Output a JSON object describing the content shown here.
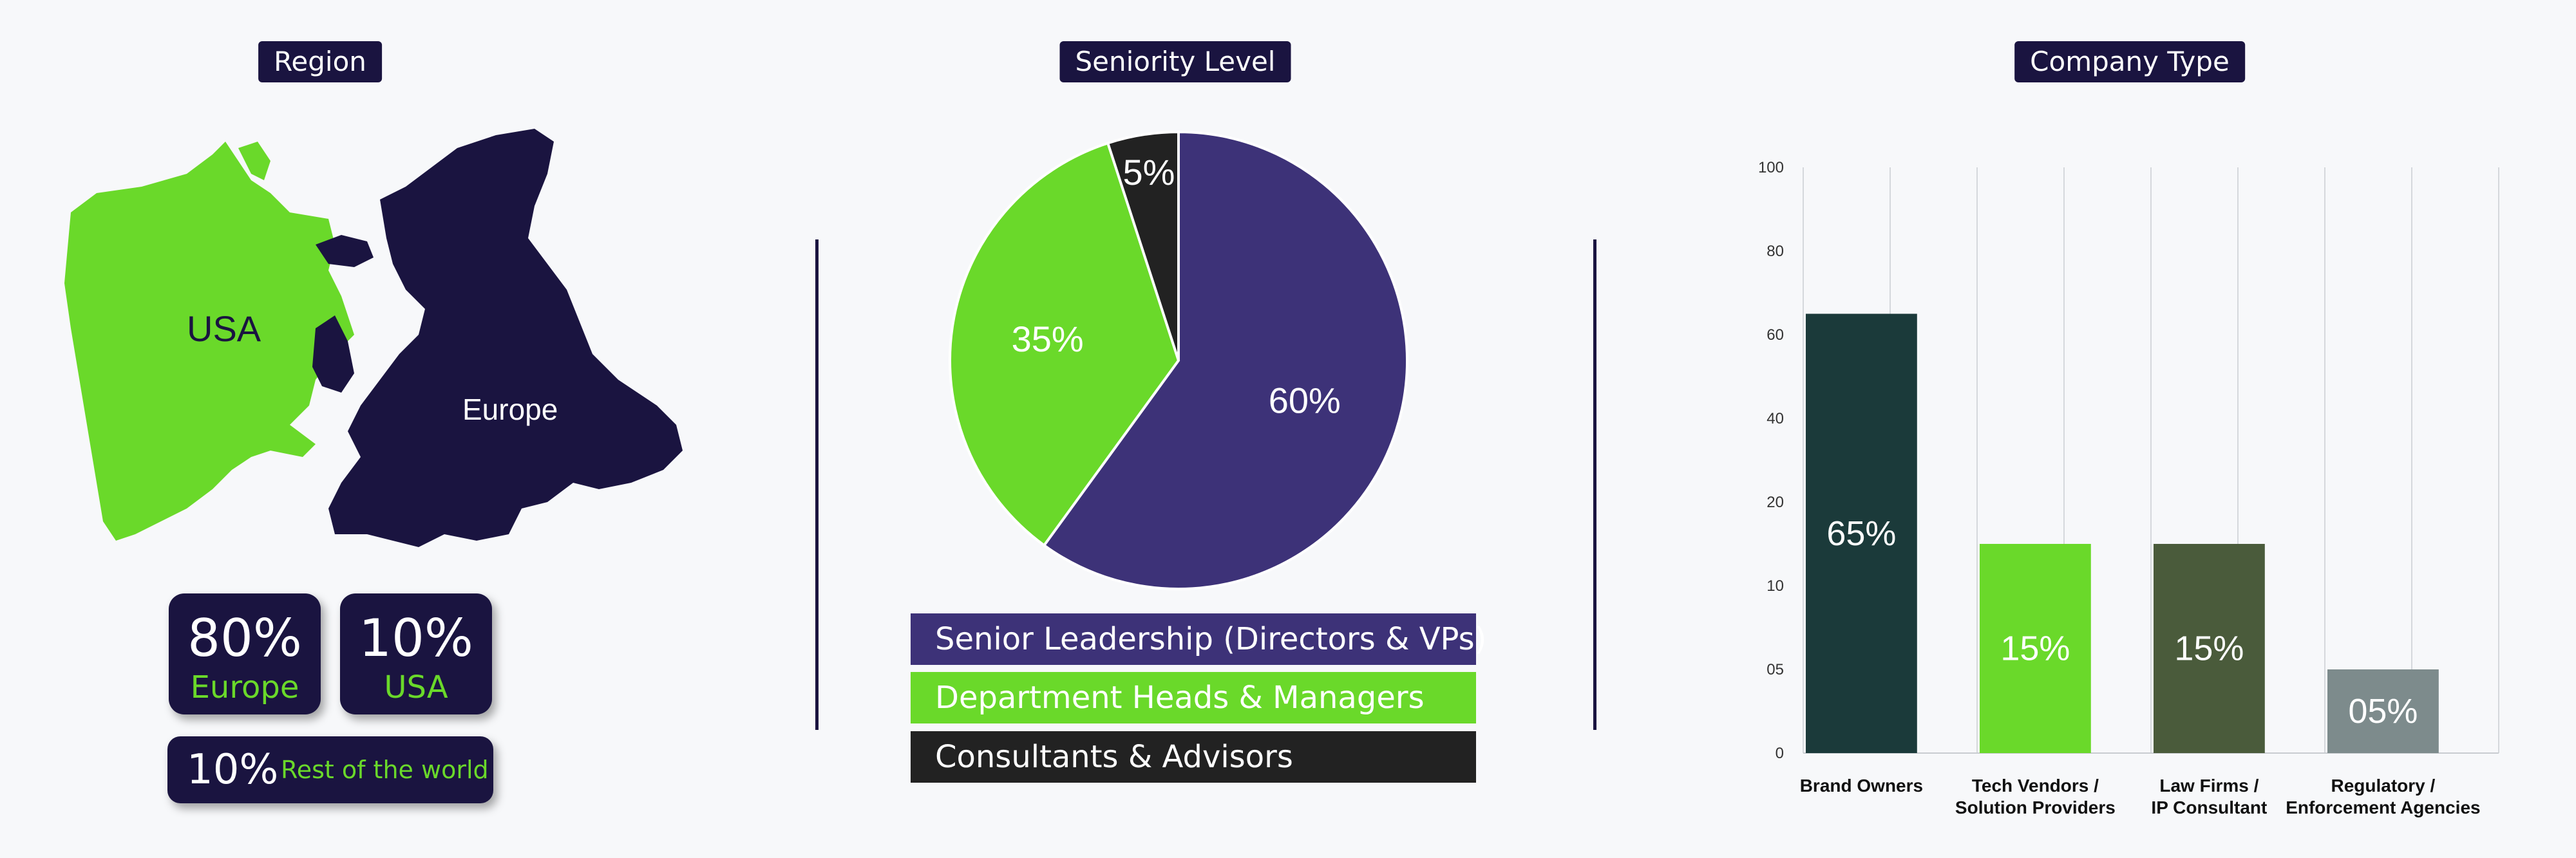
{
  "region": {
    "title": "Region",
    "map_labels": {
      "usa": "USA",
      "europe": "Europe"
    },
    "stats": [
      {
        "value": "80%",
        "label": "Europe"
      },
      {
        "value": "10%",
        "label": "USA"
      },
      {
        "value": "10%",
        "label": "Rest of the world"
      }
    ]
  },
  "seniority": {
    "title": "Seniority Level",
    "legend": [
      "Senior Leadership (Directors & VPs)",
      "Department Heads & Managers",
      "Consultants & Advisors"
    ]
  },
  "company": {
    "title": "Company Type"
  },
  "colors": {
    "navy": "#1a1440",
    "green": "#6ad92a",
    "purple": "#3d3278",
    "black": "#222222",
    "dark_teal": "#1b3a3a",
    "olive": "#4a5b3b",
    "slate": "#7d8b8c"
  },
  "chart_data": [
    {
      "type": "pie",
      "title": "Seniority Level",
      "categories": [
        "Senior Leadership (Directors & VPs)",
        "Department Heads & Managers",
        "Consultants & Advisors"
      ],
      "values": [
        60,
        35,
        5
      ],
      "value_labels": [
        "60%",
        "35%",
        "5%"
      ],
      "colors": [
        "#3d3278",
        "#6ad92a",
        "#222222"
      ]
    },
    {
      "type": "bar",
      "title": "Company Type",
      "categories": [
        "Brand Owners",
        "Tech Vendors / Solution Providers",
        "Law Firms / IP Consultant",
        "Regulatory / Enforcement Agencies"
      ],
      "category_lines": [
        [
          "Brand Owners"
        ],
        [
          "Tech Vendors /",
          "Solution Providers"
        ],
        [
          "Law Firms /",
          "IP Consultant"
        ],
        [
          "Regulatory /",
          "Enforcement Agencies"
        ]
      ],
      "values": [
        65,
        15,
        15,
        5
      ],
      "value_labels": [
        "65%",
        "15%",
        "15%",
        "05%"
      ],
      "colors": [
        "#1b3a3a",
        "#6ad92a",
        "#4a5b3b",
        "#7d8b8c"
      ],
      "yticks": [
        "0",
        "05",
        "10",
        "20",
        "40",
        "60",
        "80",
        "100"
      ],
      "grid": true
    }
  ]
}
